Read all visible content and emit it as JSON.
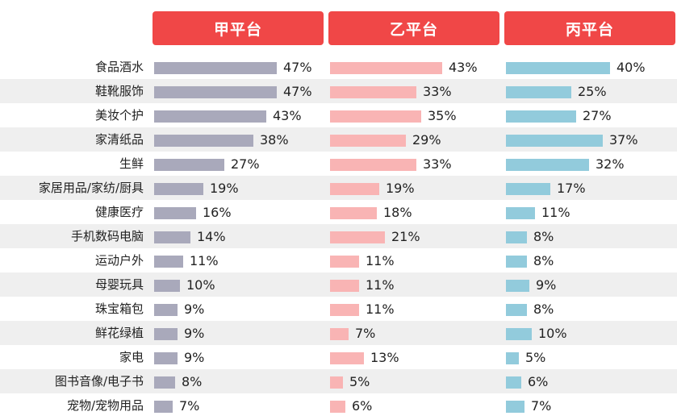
{
  "chart_data": {
    "type": "bar",
    "orientation": "horizontal",
    "title": "",
    "xlabel": "",
    "ylabel": "",
    "xlim": [
      0,
      47
    ],
    "value_suffix": "%",
    "header_color": "#f04747",
    "categories": [
      "食品酒水",
      "鞋靴服饰",
      "美妆个护",
      "家清纸品",
      "生鲜",
      "家居用品/家纺/厨具",
      "健康医疗",
      "手机数码电脑",
      "运动户外",
      "母婴玩具",
      "珠宝箱包",
      "鲜花绿植",
      "家电",
      "图书音像/电子书",
      "宠物/宠物用品"
    ],
    "series": [
      {
        "name": "甲平台",
        "color": "#a9a9bb",
        "values": [
          47,
          47,
          43,
          38,
          27,
          19,
          16,
          14,
          11,
          10,
          9,
          9,
          9,
          8,
          7
        ]
      },
      {
        "name": "乙平台",
        "color": "#f9b4b4",
        "values": [
          43,
          33,
          35,
          29,
          33,
          19,
          18,
          21,
          11,
          11,
          11,
          7,
          13,
          5,
          6
        ]
      },
      {
        "name": "丙平台",
        "color": "#92cbdc",
        "values": [
          40,
          25,
          27,
          37,
          32,
          17,
          11,
          8,
          8,
          9,
          8,
          10,
          5,
          6,
          7
        ]
      }
    ]
  }
}
